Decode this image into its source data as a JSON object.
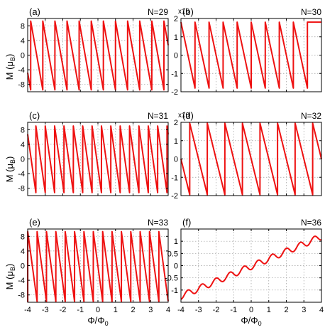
{
  "figure": {
    "xlabel_main": "Φ/Φ",
    "xlabel_sub": "0",
    "ylabel_main": "M (μ",
    "ylabel_sub": "B",
    "ylabel_close": ")"
  },
  "chart_data": [
    {
      "panel": "(a)",
      "n_label": "N=29",
      "type": "line",
      "multiplier": "",
      "xlim": [
        -4,
        4
      ],
      "ylim": [
        -10,
        10
      ],
      "yticks": [
        -8,
        -4,
        0,
        4,
        8
      ],
      "ytick_labels": [
        "-8",
        "-4",
        "0",
        "4",
        "8"
      ],
      "xticks": [
        -4,
        -3,
        -2,
        -1,
        0,
        1,
        2,
        3,
        4
      ],
      "show_x_labels": false,
      "series": [
        {
          "kind": "sawtooth",
          "period": 0.6897,
          "amplitude_low": -9.5,
          "amplitude_high": 9.3,
          "phase": 0.31
        }
      ]
    },
    {
      "panel": "(b)",
      "n_label": "N=30",
      "type": "line",
      "multiplier": "x10",
      "xlim": [
        -4,
        4
      ],
      "ylim": [
        -2,
        2
      ],
      "yticks": [
        -2,
        -1,
        0,
        1,
        2
      ],
      "ytick_labels": [
        "-2",
        "-1",
        "0",
        "1",
        "2"
      ],
      "xticks": [
        -4,
        -3,
        -2,
        -1,
        0,
        1,
        2,
        3,
        4
      ],
      "show_x_labels": false,
      "series": [
        {
          "kind": "sawtooth",
          "period": 0.8,
          "amplitude_low": -1.8,
          "amplitude_high": 1.8,
          "phase": 0.0
        }
      ]
    },
    {
      "panel": "(c)",
      "n_label": "N=31",
      "type": "line",
      "multiplier": "",
      "xlim": [
        -4,
        4
      ],
      "ylim": [
        -10,
        10
      ],
      "yticks": [
        -8,
        -4,
        0,
        4,
        8
      ],
      "ytick_labels": [
        "-8",
        "-4",
        "0",
        "4",
        "8"
      ],
      "xticks": [
        -4,
        -3,
        -2,
        -1,
        0,
        1,
        2,
        3,
        4
      ],
      "show_x_labels": false,
      "series": [
        {
          "kind": "sawtooth",
          "period": 0.5333,
          "amplitude_low": -9.2,
          "amplitude_high": 9.0,
          "phase": 0.2
        }
      ]
    },
    {
      "panel": "(d)",
      "n_label": "N=32",
      "type": "line",
      "multiplier": "x10",
      "xlim": [
        -4,
        4
      ],
      "ylim": [
        -2,
        2
      ],
      "yticks": [
        -2,
        -1,
        0,
        1,
        2
      ],
      "ytick_labels": [
        "-2",
        "-1",
        "0",
        "1",
        "2"
      ],
      "xticks": [
        -4,
        -3,
        -2,
        -1,
        0,
        1,
        2,
        3,
        4
      ],
      "show_x_labels": false,
      "series": [
        {
          "kind": "sawtooth",
          "period": 1.0,
          "amplitude_low": -1.95,
          "amplitude_high": 1.95,
          "phase": 0.5
        }
      ]
    },
    {
      "panel": "(e)",
      "n_label": "N=33",
      "type": "line",
      "multiplier": "",
      "xlim": [
        -4,
        4
      ],
      "ylim": [
        -10,
        10
      ],
      "yticks": [
        -8,
        -4,
        0,
        4,
        8
      ],
      "ytick_labels": [
        "-8",
        "-4",
        "0",
        "4",
        "8"
      ],
      "xticks": [
        -4,
        -3,
        -2,
        -1,
        0,
        1,
        2,
        3,
        4
      ],
      "show_x_labels": true,
      "xtick_labels": [
        "-4",
        "-3",
        "-2",
        "-1",
        "0",
        "1",
        "2",
        "3",
        "4"
      ],
      "series": [
        {
          "kind": "sawtooth",
          "period": 0.5333,
          "amplitude_low": -9.8,
          "amplitude_high": 9.3,
          "phase": 0.27
        }
      ]
    },
    {
      "panel": "(f)",
      "n_label": "N=36",
      "type": "line",
      "multiplier": "",
      "xlim": [
        -4,
        4
      ],
      "ylim": [
        -1.5,
        1.5
      ],
      "yticks": [
        -1,
        -0.5,
        0,
        0.5,
        1
      ],
      "ytick_labels": [
        "-1",
        "-0.5",
        "0",
        "0.5",
        "1"
      ],
      "xticks": [
        -4,
        -3,
        -2,
        -1,
        0,
        1,
        2,
        3,
        4
      ],
      "show_x_labels": true,
      "xtick_labels": [
        "-4",
        "-3",
        "-2",
        "-1",
        "0",
        "1",
        "2",
        "3",
        "4"
      ],
      "series": [
        {
          "kind": "wavy-ramp",
          "slope": 0.305,
          "offset": -0.03,
          "wave_amplitude": 0.13,
          "wave_period": 0.8,
          "phase": 0.0
        }
      ]
    }
  ]
}
